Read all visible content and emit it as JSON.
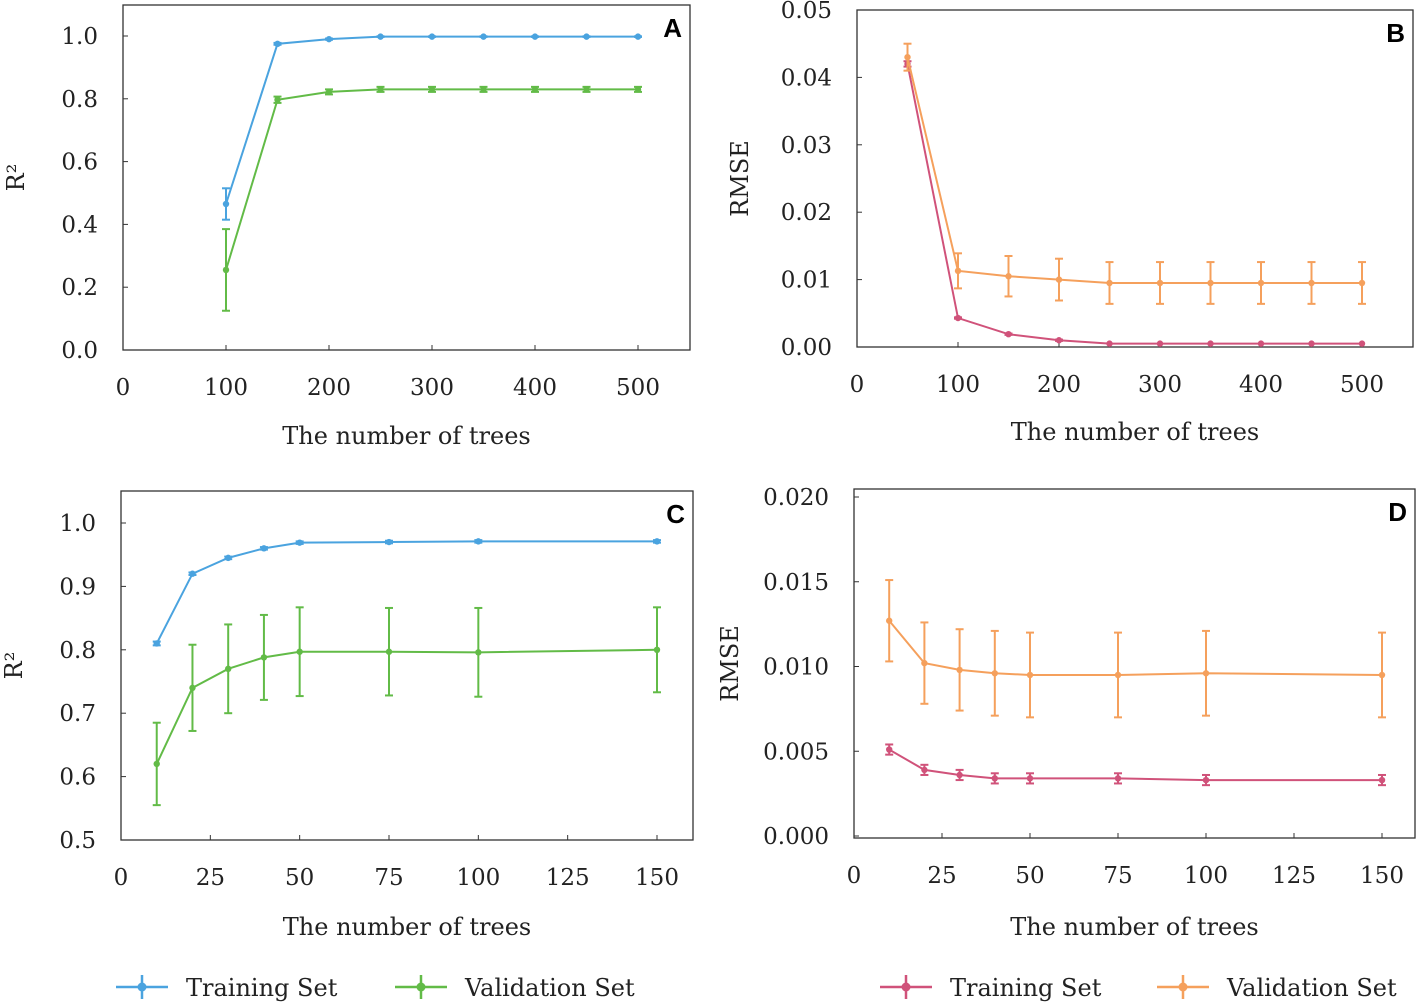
{
  "colors": {
    "train_r2": "#4aa3df",
    "val_r2": "#62bb47",
    "train_rmse": "#d0527a",
    "val_rmse": "#f5a05c"
  },
  "legend_left": [
    "Training Set",
    "Validation Set"
  ],
  "legend_right": [
    "Training Set",
    "Validation Set"
  ],
  "chart_data": [
    {
      "type": "line",
      "panel": "A",
      "xlabel": "The number of trees",
      "ylabel": "R²",
      "xlim": [
        0,
        550
      ],
      "ylim": [
        0,
        1.05
      ],
      "xticks": [
        0,
        100,
        200,
        300,
        400,
        500
      ],
      "yticks": [
        "0.0",
        "0.2",
        "0.4",
        "0.6",
        "0.8",
        "1.0"
      ],
      "ytick_values": [
        0,
        0.2,
        0.4,
        0.6,
        0.8,
        1.0
      ],
      "x": [
        100,
        150,
        200,
        250,
        300,
        350,
        400,
        450,
        500
      ],
      "series": [
        {
          "name": "Training Set",
          "color_key": "train_r2",
          "values": [
            0.465,
            0.975,
            0.99,
            0.998,
            0.998,
            0.998,
            0.998,
            0.998,
            0.998
          ],
          "err": [
            0.05,
            0.003,
            0.002,
            0.001,
            0.001,
            0.001,
            0.001,
            0.001,
            0.001
          ]
        },
        {
          "name": "Validation Set",
          "color_key": "val_r2",
          "values": [
            0.255,
            0.797,
            0.822,
            0.83,
            0.83,
            0.83,
            0.83,
            0.83,
            0.83
          ],
          "err": [
            0.13,
            0.01,
            0.008,
            0.008,
            0.008,
            0.008,
            0.008,
            0.008,
            0.008
          ]
        }
      ]
    },
    {
      "type": "line",
      "panel": "B",
      "xlabel": "The number of trees",
      "ylabel": "RMSE",
      "xlim": [
        0,
        550
      ],
      "ylim": [
        0,
        0.05
      ],
      "xticks": [
        0,
        100,
        200,
        300,
        400,
        500
      ],
      "yticks": [
        "0.00",
        "0.01",
        "0.02",
        "0.03",
        "0.04",
        "0.05"
      ],
      "ytick_values": [
        0,
        0.01,
        0.02,
        0.03,
        0.04,
        0.05
      ],
      "x": [
        50,
        100,
        150,
        200,
        250,
        300,
        350,
        400,
        450,
        500
      ],
      "series": [
        {
          "name": "Training Set",
          "color_key": "train_rmse",
          "values": [
            0.042,
            0.0043,
            0.0019,
            0.001,
            0.0005,
            0.0005,
            0.0005,
            0.0005,
            0.0005,
            0.0005
          ],
          "err": [
            0.0004,
            0.0001,
            0.0001,
            0.0001,
            0,
            0,
            0,
            0,
            0,
            0
          ]
        },
        {
          "name": "Validation Set",
          "color_key": "val_rmse",
          "values": [
            0.043,
            0.0113,
            0.0105,
            0.01,
            0.0095,
            0.0095,
            0.0095,
            0.0095,
            0.0095,
            0.0095
          ],
          "err": [
            0.002,
            0.0026,
            0.003,
            0.0031,
            0.0031,
            0.0031,
            0.0031,
            0.0031,
            0.0031,
            0.0031
          ]
        }
      ]
    },
    {
      "type": "line",
      "panel": "C",
      "xlabel": "The number of trees",
      "ylabel": "R²",
      "xlim": [
        0,
        160
      ],
      "ylim": [
        0.5,
        1.05
      ],
      "xticks": [
        0,
        25,
        50,
        75,
        100,
        125,
        150
      ],
      "yticks": [
        "0.5",
        "0.6",
        "0.7",
        "0.8",
        "0.9",
        "1.0"
      ],
      "ytick_values": [
        0.5,
        0.6,
        0.7,
        0.8,
        0.9,
        1.0
      ],
      "x": [
        10,
        20,
        30,
        40,
        50,
        75,
        100,
        150
      ],
      "series": [
        {
          "name": "Training Set",
          "color_key": "train_r2",
          "values": [
            0.81,
            0.92,
            0.945,
            0.96,
            0.969,
            0.97,
            0.971,
            0.971
          ],
          "err": [
            0.003,
            0.002,
            0.002,
            0.002,
            0.002,
            0.002,
            0.002,
            0.002
          ]
        },
        {
          "name": "Validation Set",
          "color_key": "val_r2",
          "values": [
            0.62,
            0.74,
            0.77,
            0.788,
            0.797,
            0.797,
            0.796,
            0.8
          ],
          "err": [
            0.065,
            0.068,
            0.07,
            0.067,
            0.07,
            0.069,
            0.07,
            0.067
          ]
        }
      ]
    },
    {
      "type": "line",
      "panel": "D",
      "xlabel": "The number of trees",
      "ylabel": "RMSE",
      "xlim": [
        0,
        160
      ],
      "ylim": [
        0,
        0.02
      ],
      "xticks": [
        0,
        25,
        50,
        75,
        100,
        125,
        150
      ],
      "yticks": [
        "0.000",
        "0.005",
        "0.010",
        "0.015",
        "0.020"
      ],
      "ytick_values": [
        0,
        0.005,
        0.01,
        0.015,
        0.02
      ],
      "x": [
        10,
        20,
        30,
        40,
        50,
        75,
        100,
        150
      ],
      "series": [
        {
          "name": "Training Set",
          "color_key": "train_rmse",
          "values": [
            0.0051,
            0.0039,
            0.0036,
            0.0034,
            0.0034,
            0.0034,
            0.0033,
            0.0033
          ],
          "err": [
            0.0003,
            0.0003,
            0.0003,
            0.0003,
            0.0003,
            0.0003,
            0.0003,
            0.0003
          ]
        },
        {
          "name": "Validation Set",
          "color_key": "val_rmse",
          "values": [
            0.0127,
            0.0102,
            0.0098,
            0.0096,
            0.0095,
            0.0095,
            0.0096,
            0.0095
          ],
          "err": [
            0.0024,
            0.0024,
            0.0024,
            0.0025,
            0.0025,
            0.0025,
            0.0025,
            0.0025
          ]
        }
      ]
    }
  ]
}
